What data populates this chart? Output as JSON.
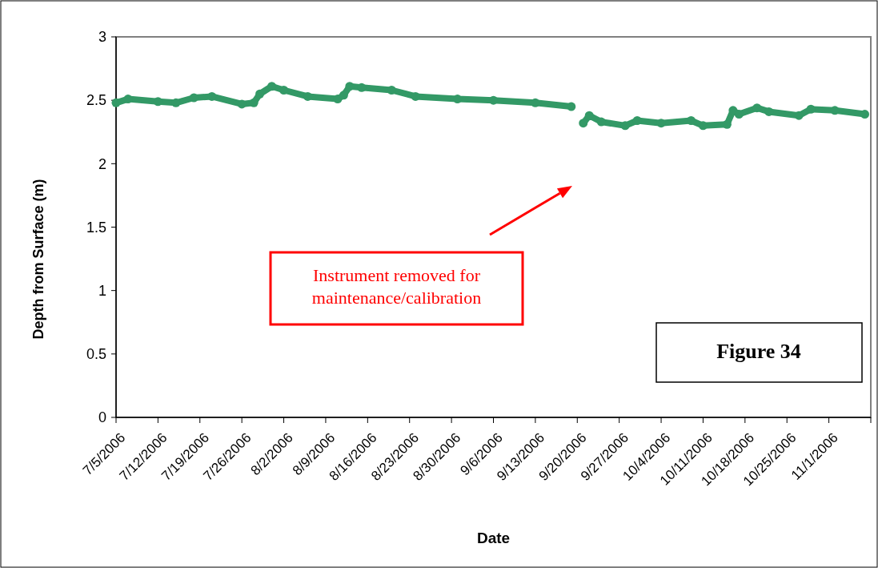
{
  "chart_data": {
    "type": "line",
    "xlabel": "Date",
    "ylabel": "Depth from Surface (m)",
    "xlim": [
      "2006-07-05",
      "2006-11-08"
    ],
    "xticks": [
      {
        "value": "2006-07-05",
        "label": "7/5/2006"
      },
      {
        "value": "2006-07-12",
        "label": "7/12/2006"
      },
      {
        "value": "2006-07-19",
        "label": "7/19/2006"
      },
      {
        "value": "2006-07-26",
        "label": "7/26/2006"
      },
      {
        "value": "2006-08-02",
        "label": "8/2/2006"
      },
      {
        "value": "2006-08-09",
        "label": "8/9/2006"
      },
      {
        "value": "2006-08-16",
        "label": "8/16/2006"
      },
      {
        "value": "2006-08-23",
        "label": "8/23/2006"
      },
      {
        "value": "2006-08-30",
        "label": "8/30/2006"
      },
      {
        "value": "2006-09-06",
        "label": "9/6/2006"
      },
      {
        "value": "2006-09-13",
        "label": "9/13/2006"
      },
      {
        "value": "2006-09-20",
        "label": "9/20/2006"
      },
      {
        "value": "2006-09-27",
        "label": "9/27/2006"
      },
      {
        "value": "2006-10-04",
        "label": "10/4/2006"
      },
      {
        "value": "2006-10-11",
        "label": "10/11/2006"
      },
      {
        "value": "2006-10-18",
        "label": "10/18/2006"
      },
      {
        "value": "2006-10-25",
        "label": "10/25/2006"
      },
      {
        "value": "2006-11-01",
        "label": "11/1/2006"
      },
      {
        "value": "2006-11-08",
        "label": null
      }
    ],
    "ylim": [
      0,
      3
    ],
    "yticks": [
      0,
      0.5,
      1,
      1.5,
      2,
      2.5,
      3
    ],
    "marker": "circle",
    "grid": false,
    "x": [
      "2006-07-05",
      "2006-07-07",
      "2006-07-12",
      "2006-07-15",
      "2006-07-18",
      "2006-07-21",
      "2006-07-26",
      "2006-07-28",
      "2006-07-29",
      "2006-07-31",
      "2006-08-02",
      "2006-08-06",
      "2006-08-11",
      "2006-08-12",
      "2006-08-13",
      "2006-08-15",
      "2006-08-20",
      "2006-08-24",
      "2006-08-31",
      "2006-09-06",
      "2006-09-13",
      "2006-09-19",
      "2006-09-20",
      "2006-09-21",
      "2006-09-22",
      "2006-09-24",
      "2006-09-28",
      "2006-09-30",
      "2006-10-04",
      "2006-10-09",
      "2006-10-11",
      "2006-10-15",
      "2006-10-16",
      "2006-10-17",
      "2006-10-20",
      "2006-10-22",
      "2006-10-27",
      "2006-10-29",
      "2006-11-02",
      "2006-11-07"
    ],
    "series": [
      {
        "color": "#339966",
        "values": [
          2.48,
          2.51,
          2.49,
          2.48,
          2.52,
          2.53,
          2.47,
          2.48,
          2.55,
          2.61,
          2.58,
          2.53,
          2.51,
          2.54,
          2.61,
          2.6,
          2.58,
          2.53,
          2.51,
          2.5,
          2.48,
          2.45,
          null,
          2.32,
          2.38,
          2.33,
          2.3,
          2.34,
          2.32,
          2.34,
          2.3,
          2.31,
          2.42,
          2.39,
          2.44,
          2.41,
          2.38,
          2.43,
          2.42,
          2.39
        ]
      }
    ],
    "annotations": [
      "Instrument removed for maintenance/calibration",
      "Figure 34"
    ]
  }
}
